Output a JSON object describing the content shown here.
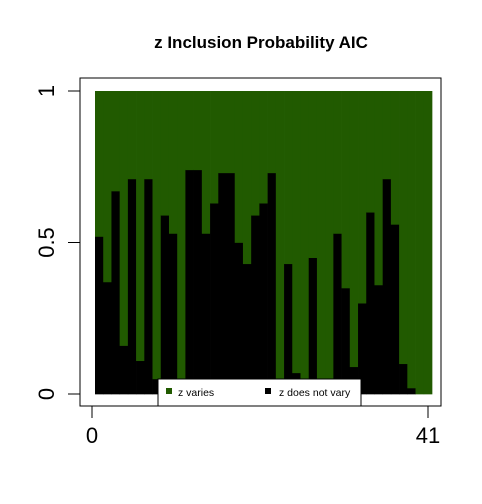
{
  "chart_data": {
    "type": "bar",
    "title": "z Inclusion Probability AIC",
    "xlabel": "",
    "ylabel": "",
    "x": [
      1,
      2,
      3,
      4,
      5,
      6,
      7,
      8,
      9,
      10,
      11,
      12,
      13,
      14,
      15,
      16,
      17,
      18,
      19,
      20,
      21,
      22,
      23,
      24,
      25,
      26,
      27,
      28,
      29,
      30,
      31,
      32,
      33,
      34,
      35,
      36,
      37,
      38,
      39,
      40,
      41
    ],
    "xlim": [
      0,
      41
    ],
    "ylim": [
      0,
      1
    ],
    "x_ticks": [
      {
        "value": 0,
        "label": "0"
      },
      {
        "value": 41,
        "label": "41"
      }
    ],
    "y_ticks": [
      {
        "value": 0,
        "label": "0"
      },
      {
        "value": 0.5,
        "label": "0.5"
      },
      {
        "value": 1,
        "label": "1"
      }
    ],
    "stacked": true,
    "series": [
      {
        "name": "z does not vary",
        "color": "#000000",
        "values": [
          0.52,
          0.37,
          0.67,
          0.16,
          0.71,
          0.11,
          0.71,
          0.05,
          0.59,
          0.53,
          0.05,
          0.74,
          0.74,
          0.53,
          0.63,
          0.73,
          0.73,
          0.5,
          0.43,
          0.59,
          0.63,
          0.73,
          0.05,
          0.43,
          0.07,
          0.05,
          0.45,
          0.05,
          0.05,
          0.53,
          0.35,
          0.09,
          0.3,
          0.6,
          0.36,
          0.71,
          0.56,
          0.1,
          0.02,
          0.0,
          0.0
        ]
      },
      {
        "name": "z varies",
        "color": "#215a00",
        "values": [
          0.48,
          0.63,
          0.33,
          0.84,
          0.29,
          0.89,
          0.29,
          0.95,
          0.41,
          0.47,
          0.95,
          0.26,
          0.26,
          0.47,
          0.37,
          0.27,
          0.27,
          0.5,
          0.57,
          0.41,
          0.37,
          0.27,
          0.95,
          0.57,
          0.93,
          0.95,
          0.55,
          0.95,
          0.95,
          0.47,
          0.65,
          0.91,
          0.7,
          0.4,
          0.64,
          0.29,
          0.44,
          0.9,
          0.98,
          1.0,
          1.0
        ]
      }
    ],
    "grid": false,
    "legend_position": "bottom-center"
  }
}
